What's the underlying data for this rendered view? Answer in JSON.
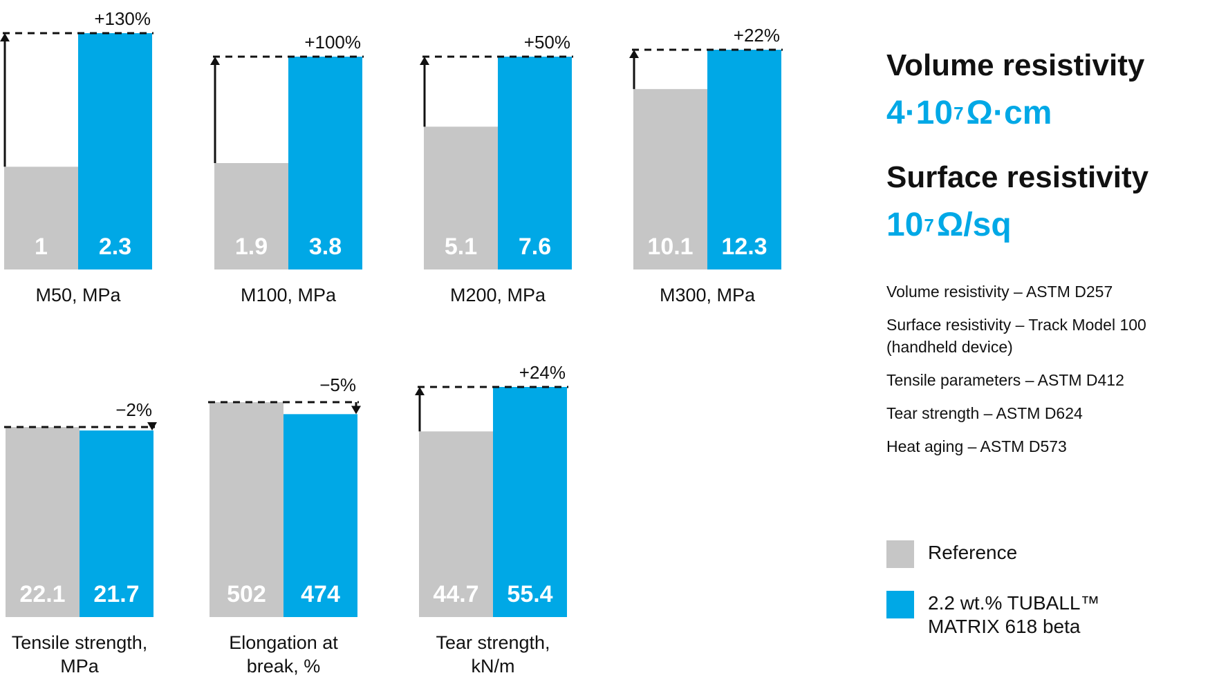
{
  "colors": {
    "reference": "#c6c6c6",
    "tuball": "#00a8e6",
    "text": "#111111",
    "bar_text": "#ffffff"
  },
  "chart_data": [
    {
      "type": "bar",
      "title": "",
      "xlabel": "M50, MPa",
      "ylabel": "",
      "change": "+130%",
      "direction": "up",
      "categories": [
        "Reference",
        "2.2 wt.% TUBALL™ MATRIX 618 beta"
      ],
      "values": [
        1,
        2.3
      ],
      "value_labels": [
        "1",
        "2.3"
      ]
    },
    {
      "type": "bar",
      "title": "",
      "xlabel": "M100, MPa",
      "ylabel": "",
      "change": "+100%",
      "direction": "up",
      "categories": [
        "Reference",
        "2.2 wt.% TUBALL™ MATRIX 618 beta"
      ],
      "values": [
        1.9,
        3.8
      ],
      "value_labels": [
        "1.9",
        "3.8"
      ]
    },
    {
      "type": "bar",
      "title": "",
      "xlabel": "M200, MPa",
      "ylabel": "",
      "change": "+50%",
      "direction": "up",
      "categories": [
        "Reference",
        "2.2 wt.% TUBALL™ MATRIX 618 beta"
      ],
      "values": [
        5.1,
        7.6
      ],
      "value_labels": [
        "5.1",
        "7.6"
      ]
    },
    {
      "type": "bar",
      "title": "",
      "xlabel": "M300, MPa",
      "ylabel": "",
      "change": "+22%",
      "direction": "up",
      "categories": [
        "Reference",
        "2.2 wt.% TUBALL™ MATRIX 618 beta"
      ],
      "values": [
        10.1,
        12.3
      ],
      "value_labels": [
        "10.1",
        "12.3"
      ]
    },
    {
      "type": "bar",
      "title": "",
      "xlabel": "Tensile strength, MPa",
      "ylabel": "",
      "change": "−2%",
      "direction": "down",
      "categories": [
        "Reference",
        "2.2 wt.% TUBALL™ MATRIX 618 beta"
      ],
      "values": [
        22.1,
        21.7
      ],
      "value_labels": [
        "22.1",
        "21.7"
      ]
    },
    {
      "type": "bar",
      "title": "",
      "xlabel": "Elongation at break, %",
      "ylabel": "",
      "change": "−5%",
      "direction": "down",
      "categories": [
        "Reference",
        "2.2 wt.% TUBALL™ MATRIX 618 beta"
      ],
      "values": [
        502,
        474
      ],
      "value_labels": [
        "502",
        "474"
      ]
    },
    {
      "type": "bar",
      "title": "",
      "xlabel": "Tear strength, kN/m",
      "ylabel": "",
      "change": "+24%",
      "direction": "up",
      "categories": [
        "Reference",
        "2.2 wt.% TUBALL™ MATRIX 618 beta"
      ],
      "values": [
        44.7,
        55.4
      ],
      "value_labels": [
        "44.7",
        "55.4"
      ]
    }
  ],
  "side_panel": {
    "volume_title": "Volume resistivity",
    "volume_mantissa": "4·10",
    "volume_exponent": "7",
    "volume_unit": "Ω·cm",
    "surface_title": "Surface resistivity",
    "surface_mantissa": "10",
    "surface_exponent": "7",
    "surface_unit": "Ω/sq",
    "notes": [
      "Volume resistivity – ASTM D257",
      "Surface resistivity – Track Model 100 (handheld device)",
      "Tensile parameters – ASTM D412",
      "Tear strength – ASTM D624",
      "Heat aging – ASTM D573"
    ]
  },
  "legend": [
    {
      "label": "Reference",
      "color": "#c6c6c6"
    },
    {
      "label": "2.2 wt.% TUBALL™ MATRIX 618 beta",
      "color": "#00a8e6"
    }
  ]
}
